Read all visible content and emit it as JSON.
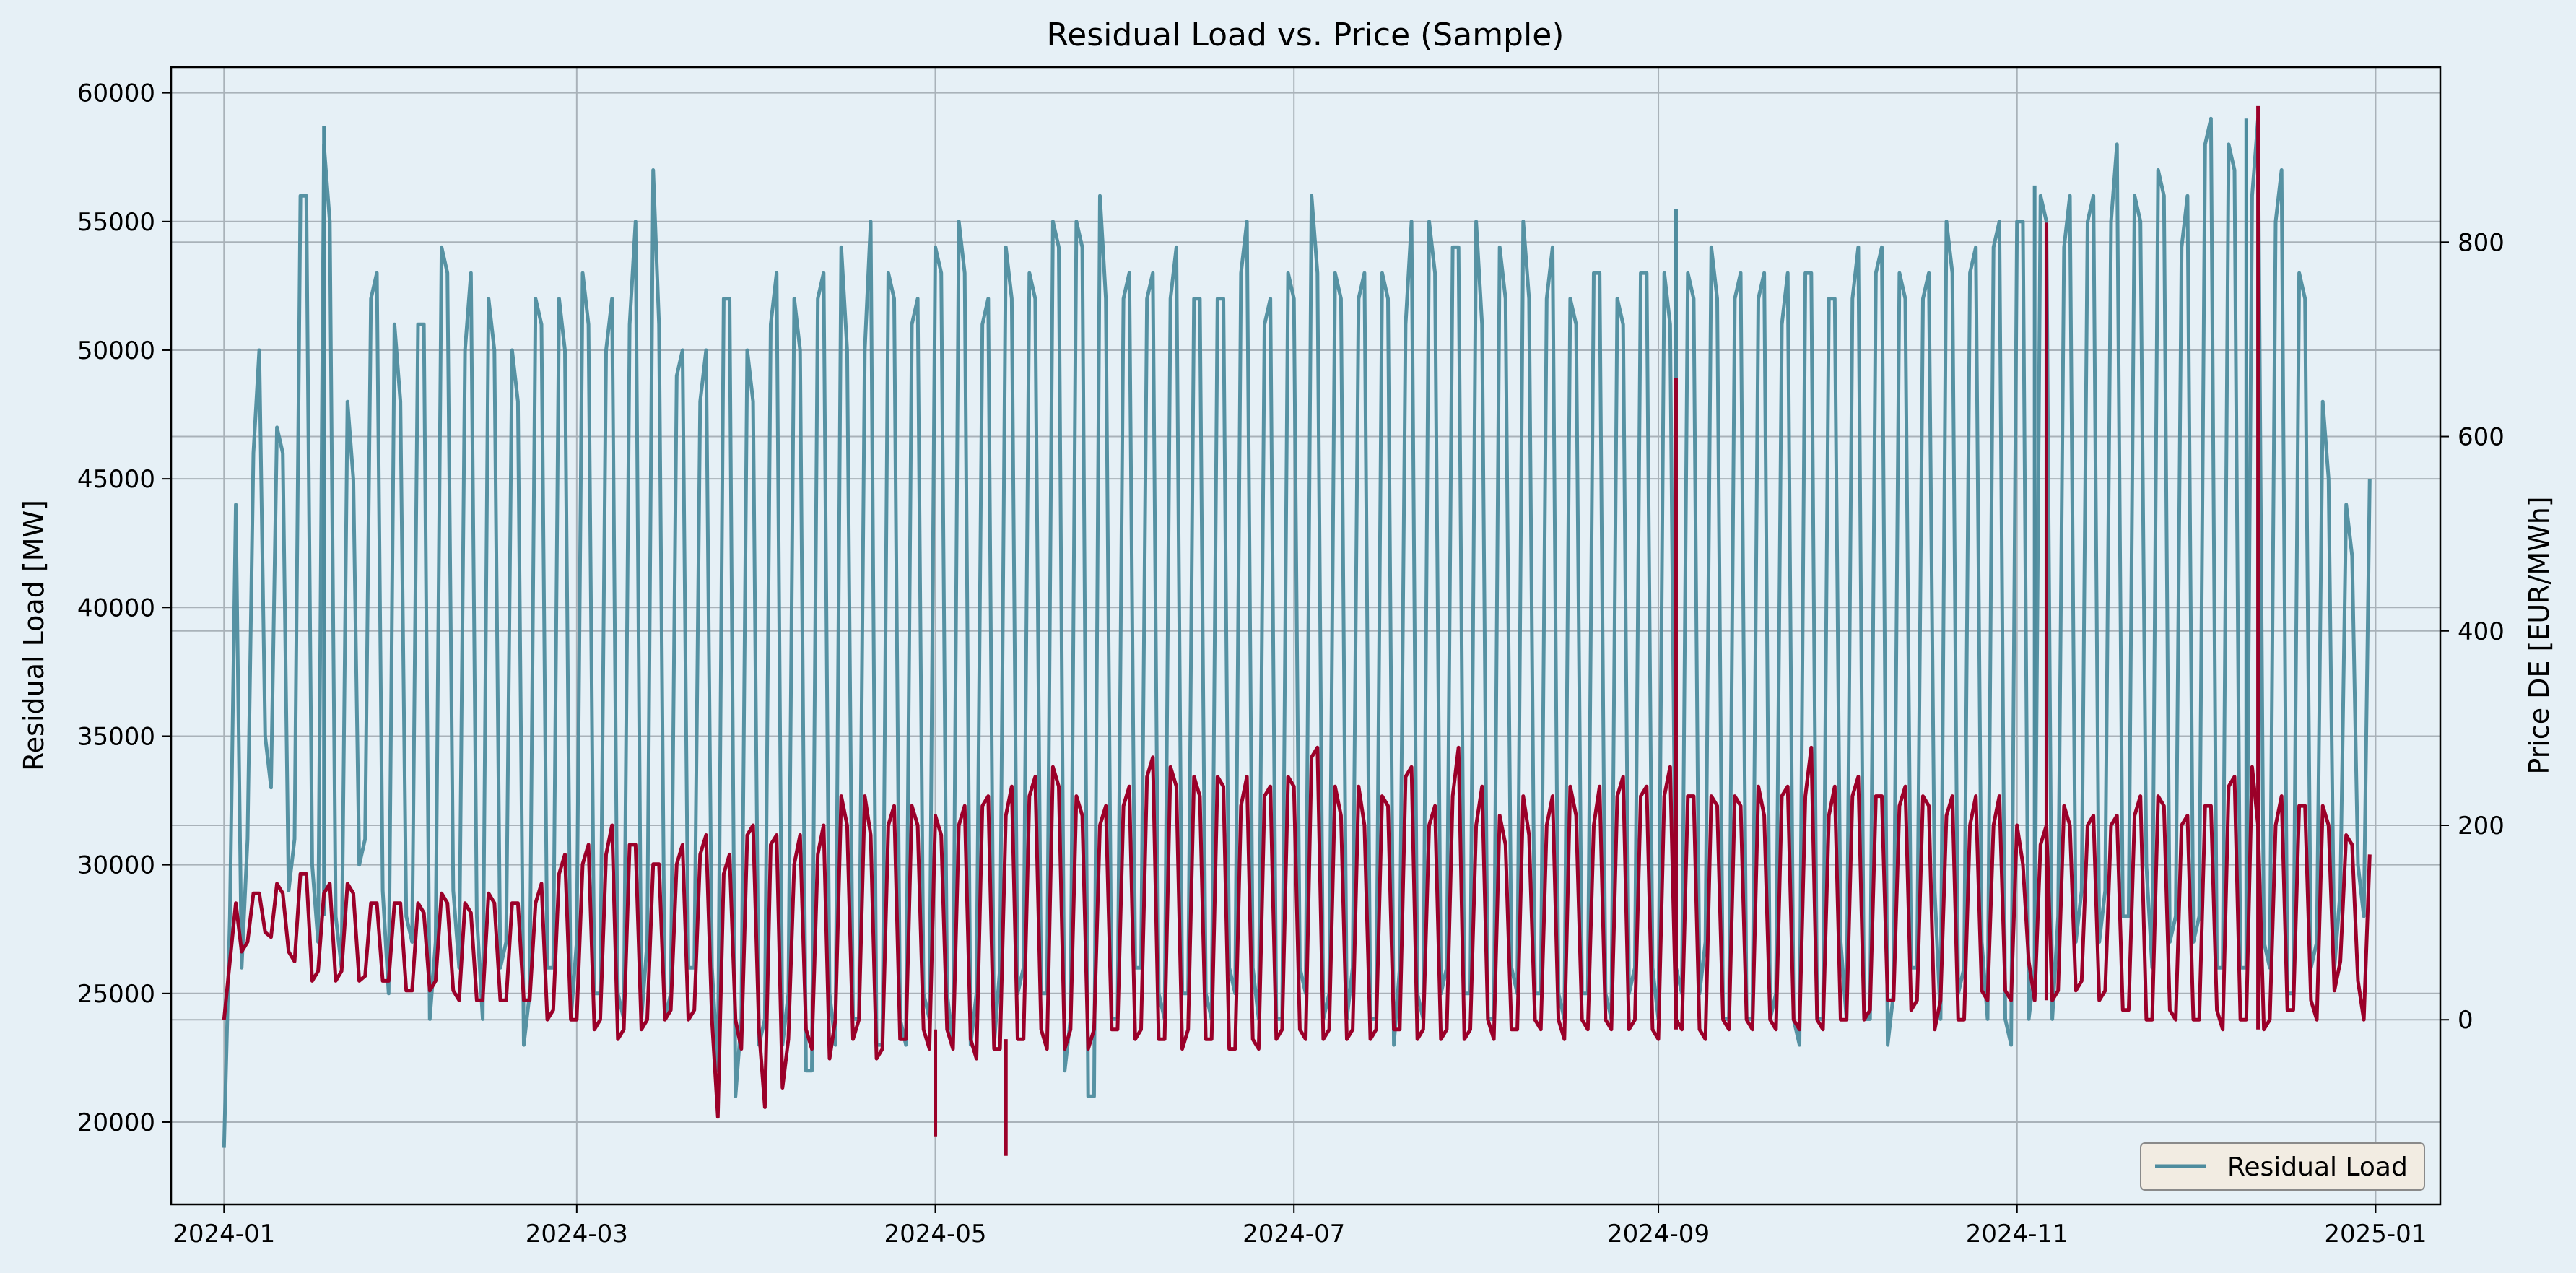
{
  "colors": {
    "background": "#e6f0f6",
    "residual_load": "#4e8c9e",
    "price": "#9b0029",
    "grid": "#a9b2b9",
    "legend_bg": "#f2ece2"
  },
  "chart_data": {
    "type": "line",
    "title": "Residual Load vs. Price (Sample)",
    "grid": true,
    "legend_placement": "bottom-right",
    "x": {
      "type": "date",
      "range": [
        "2023-12-23",
        "2025-01-12"
      ],
      "tick_labels": [
        "2024-01",
        "2024-03",
        "2024-05",
        "2024-07",
        "2024-09",
        "2024-11",
        "2025-01"
      ]
    },
    "y_left": {
      "label": "Residual Load [MW]",
      "range": [
        16800,
        61000
      ],
      "ticks": [
        20000,
        25000,
        30000,
        35000,
        40000,
        45000,
        50000,
        55000,
        60000
      ]
    },
    "y_right": {
      "label": "Price DE [EUR/MWh]",
      "range": [
        -190,
        980
      ],
      "ticks": [
        0,
        200,
        400,
        600,
        800
      ]
    },
    "legend": {
      "entries": [
        "Residual Load"
      ]
    },
    "series": [
      {
        "name": "Residual Load",
        "axis": "left",
        "x_start": "2024-01-01",
        "step_days": 2,
        "daily_min": [
          19000,
          26000,
          31000,
          35000,
          33000,
          29000,
          31000,
          30000,
          27000,
          28000,
          26000,
          30000,
          31000,
          29000,
          25000,
          28000,
          27000,
          24000,
          27000,
          29000,
          26000,
          28000,
          24000,
          26000,
          27000,
          23000,
          25000,
          26000,
          26000,
          24000,
          27000,
          25000,
          25000,
          25000,
          24000,
          24000,
          27000,
          24000,
          25000,
          26000,
          26000,
          26000,
          22000,
          21000,
          24000,
          23000,
          24000,
          23000,
          25000,
          22000,
          22000,
          25000,
          23000,
          24000,
          24000,
          23000,
          23000,
          24000,
          23000,
          25000,
          24000,
          25000,
          23000,
          23000,
          25000,
          23000,
          26000,
          25000,
          26000,
          25000,
          25000,
          22000,
          24000,
          21000,
          21000,
          24000,
          24000,
          26000,
          26000,
          25000,
          24000,
          25000,
          25000,
          25000,
          24000,
          26000,
          25000,
          26000,
          24000,
          24000,
          24000,
          26000,
          25000,
          24000,
          25000,
          24000,
          26000,
          24000,
          24000,
          23000,
          26000,
          25000,
          24000,
          25000,
          26000,
          25000,
          25000,
          24000,
          24000,
          26000,
          25000,
          25000,
          25000,
          25000,
          24000,
          25000,
          25000,
          25000,
          24000,
          25000,
          26000,
          26000,
          24000,
          26000,
          25000,
          25000,
          27000,
          24000,
          24000,
          24000,
          24000,
          24000,
          25000,
          24000,
          23000,
          24000,
          24000,
          27000,
          24000,
          24000,
          24000,
          23000,
          25000,
          26000,
          26000,
          29000,
          24000,
          25000,
          26000,
          27000,
          24000,
          24000,
          23000,
          24000,
          26000,
          24000,
          28000,
          27000,
          29000,
          27000,
          29000,
          28000,
          28000,
          30000,
          26000,
          27000,
          28000,
          27000,
          28000,
          26000,
          26000,
          26000,
          26000,
          27000,
          26000,
          25000,
          25000,
          26000,
          27000,
          26000,
          29000,
          30000,
          28000
        ],
        "daily_max": [
          28000,
          44000,
          46000,
          50000,
          47000,
          46000,
          56000,
          56000,
          58000,
          55000,
          48000,
          45000,
          52000,
          53000,
          51000,
          48000,
          51000,
          51000,
          54000,
          53000,
          50000,
          53000,
          52000,
          50000,
          50000,
          48000,
          52000,
          51000,
          52000,
          50000,
          53000,
          51000,
          50000,
          52000,
          51000,
          55000,
          57000,
          51000,
          49000,
          50000,
          48000,
          50000,
          52000,
          52000,
          50000,
          48000,
          51000,
          53000,
          52000,
          50000,
          52000,
          53000,
          54000,
          50000,
          50000,
          55000,
          53000,
          52000,
          51000,
          52000,
          54000,
          53000,
          55000,
          53000,
          51000,
          52000,
          54000,
          52000,
          53000,
          52000,
          55000,
          54000,
          55000,
          54000,
          56000,
          52000,
          52000,
          53000,
          52000,
          53000,
          52000,
          54000,
          52000,
          52000,
          52000,
          52000,
          53000,
          55000,
          51000,
          52000,
          53000,
          52000,
          56000,
          53000,
          53000,
          52000,
          52000,
          53000,
          53000,
          52000,
          51000,
          55000,
          55000,
          53000,
          54000,
          54000,
          55000,
          51000,
          54000,
          52000,
          55000,
          52000,
          52000,
          54000,
          52000,
          51000,
          53000,
          53000,
          52000,
          51000,
          53000,
          53000,
          53000,
          51000,
          53000,
          52000,
          54000,
          52000,
          52000,
          53000,
          52000,
          53000,
          51000,
          53000,
          53000,
          53000,
          52000,
          52000,
          52000,
          54000,
          53000,
          54000,
          53000,
          52000,
          52000,
          53000,
          55000,
          53000,
          53000,
          54000,
          54000,
          55000,
          55000,
          55000,
          56000,
          55000,
          54000,
          56000,
          55000,
          56000,
          55000,
          58000,
          56000,
          55000,
          57000,
          56000,
          54000,
          56000,
          58000,
          59000,
          58000,
          57000,
          56000,
          59000,
          55000,
          57000,
          53000,
          52000,
          48000,
          45000,
          44000,
          42000,
          45000,
          40000,
          44000
        ],
        "data_samples": [
          [
            "2024-01-01",
            19000
          ],
          [
            "2024-01-18",
            58700
          ],
          [
            "2024-09-04",
            55500
          ],
          [
            "2024-11-04",
            56400
          ],
          [
            "2024-12-10",
            59000
          ],
          [
            "2025-01-01",
            44000
          ]
        ]
      },
      {
        "name": "Price DE",
        "axis": "right",
        "x_start": "2024-01-01",
        "step_days": 2,
        "daily_min": [
          0,
          70,
          80,
          90,
          85,
          70,
          60,
          40,
          50,
          40,
          50,
          40,
          45,
          40,
          40,
          30,
          30,
          30,
          40,
          30,
          20,
          20,
          20,
          20,
          20,
          20,
          20,
          0,
          10,
          0,
          0,
          -10,
          0,
          -20,
          -10,
          -10,
          0,
          0,
          10,
          0,
          10,
          0,
          -100,
          0,
          -30,
          -10,
          -90,
          -70,
          -20,
          -10,
          -30,
          -40,
          0,
          -20,
          0,
          -40,
          -30,
          -20,
          -20,
          -10,
          -30,
          -10,
          -30,
          -20,
          -40,
          -30,
          -30,
          -20,
          -20,
          -10,
          -30,
          -30,
          -10,
          -30,
          -10,
          -10,
          -10,
          -20,
          -10,
          -20,
          -20,
          -30,
          -10,
          -20,
          -20,
          -30,
          -30,
          -20,
          -30,
          -20,
          -10,
          -10,
          -20,
          -20,
          -10,
          -20,
          -10,
          -20,
          -10,
          -10,
          -10,
          -20,
          -10,
          -20,
          -10,
          -20,
          -10,
          0,
          -20,
          -10,
          -10,
          0,
          -10,
          0,
          -20,
          0,
          -10,
          0,
          -10,
          -10,
          0,
          -10,
          -20,
          0,
          -10,
          -10,
          -20,
          0,
          -10,
          0,
          -10,
          0,
          -10,
          0,
          -10,
          0,
          -10,
          0,
          0,
          0,
          10,
          20,
          20,
          10,
          20,
          -10,
          20,
          0,
          0,
          30,
          20,
          30,
          20,
          60,
          20,
          20,
          30,
          30,
          40,
          20,
          30,
          10,
          10,
          0,
          0,
          10,
          0,
          0,
          0,
          10,
          -10,
          0,
          0,
          -10,
          0,
          10,
          10,
          20,
          0,
          30,
          60,
          40,
          0
        ],
        "daily_max": [
          60,
          120,
          130,
          130,
          140,
          130,
          150,
          150,
          130,
          140,
          140,
          130,
          120,
          120,
          120,
          120,
          120,
          110,
          130,
          120,
          120,
          110,
          130,
          120,
          120,
          120,
          120,
          140,
          150,
          170,
          160,
          180,
          170,
          200,
          180,
          180,
          160,
          160,
          160,
          180,
          170,
          190,
          150,
          170,
          190,
          200,
          180,
          190,
          160,
          190,
          170,
          200,
          230,
          200,
          230,
          190,
          200,
          220,
          220,
          200,
          210,
          190,
          200,
          220,
          220,
          230,
          210,
          240,
          230,
          250,
          260,
          240,
          230,
          210,
          200,
          220,
          220,
          240,
          250,
          270,
          260,
          240,
          250,
          230,
          250,
          240,
          220,
          250,
          230,
          240,
          250,
          240,
          270,
          280,
          240,
          210,
          240,
          200,
          230,
          220,
          250,
          260,
          200,
          220,
          230,
          280,
          200,
          240,
          210,
          180,
          230,
          190,
          200,
          230,
          240,
          210,
          200,
          240,
          230,
          250,
          230,
          240,
          230,
          260,
          230,
          230,
          230,
          220,
          230,
          220,
          240,
          210,
          230,
          240,
          230,
          280,
          210,
          240,
          230,
          250,
          230,
          230,
          220,
          240,
          230,
          220,
          210,
          230,
          200,
          230,
          200,
          230,
          200,
          160,
          180,
          200,
          220,
          200,
          200,
          210,
          200,
          210,
          210,
          230,
          230,
          220,
          200,
          210,
          220,
          220,
          240,
          250,
          260,
          200,
          200,
          230,
          220,
          220,
          220,
          200,
          190,
          180,
          170,
          150,
          100
        ],
        "data_samples": [
          [
            "2024-01-01",
            0
          ],
          [
            "2024-05-01",
            -120
          ],
          [
            "2024-05-13",
            -140
          ],
          [
            "2024-09-04",
            660
          ],
          [
            "2024-11-06",
            820
          ],
          [
            "2024-12-12",
            940
          ],
          [
            "2025-01-01",
            0
          ]
        ]
      }
    ]
  }
}
